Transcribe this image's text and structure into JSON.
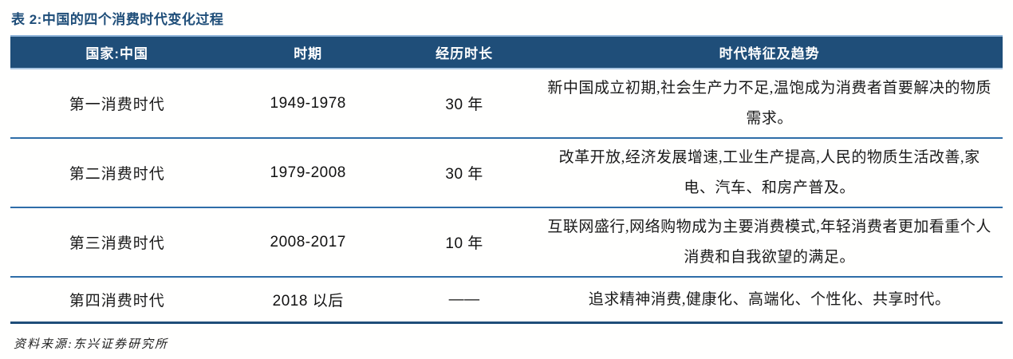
{
  "title": "表 2:中国的四个消费时代变化过程",
  "table": {
    "headers": {
      "country": "国家:中国",
      "period": "时期",
      "duration": "经历时长",
      "features": "时代特征及趋势"
    },
    "rows": [
      {
        "era": "第一消费时代",
        "period": "1949-1978",
        "duration": "30 年",
        "features": "新中国成立初期,社会生产力不足,温饱成为消费者首要解决的物质需求。"
      },
      {
        "era": "第二消费时代",
        "period": "1979-2008",
        "duration": "30 年",
        "features": "改革开放,经济发展增速,工业生产提高,人民的物质生活改善,家电、汽车、和房产普及。"
      },
      {
        "era": "第三消费时代",
        "period": "2008-2017",
        "duration": "10 年",
        "features": "互联网盛行,网络购物成为主要消费模式,年轻消费者更加看重个人消费和自我欲望的满足。"
      },
      {
        "era": "第四消费时代",
        "period": "2018 以后",
        "duration": "——",
        "features": "追求精神消费,健康化、高端化、个性化、共享时代。"
      }
    ]
  },
  "footer": {
    "source": "资料来源:东兴证券研究所"
  },
  "colors": {
    "header_bg": "#1f4e79",
    "header_text": "#ffffff",
    "title_text": "#1f4e79",
    "row_divider": "#2e6da8",
    "table_bottom_border": "#1f4e79",
    "light_border": "#8fb4d9"
  }
}
